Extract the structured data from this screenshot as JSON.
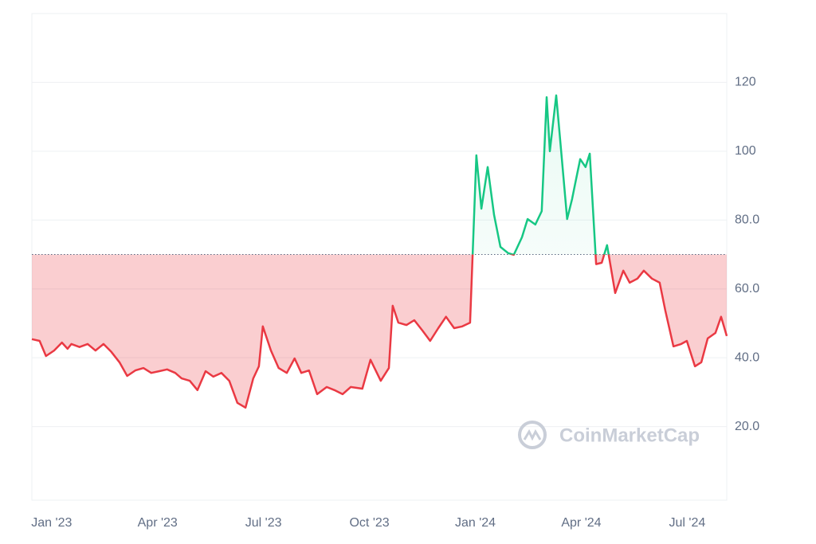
{
  "chart_data": {
    "type": "baseline-area",
    "watermark": "CoinMarketCap",
    "baseline": 70,
    "up_color": "#16c784",
    "down_color": "#ea3943",
    "grid": true,
    "xlim": [
      -0.56,
      19.12
    ],
    "ylim": [
      0,
      140
    ],
    "xticks": [
      {
        "value": 0,
        "label": "Jan '23"
      },
      {
        "value": 3,
        "label": "Apr '23"
      },
      {
        "value": 6,
        "label": "Jul '23"
      },
      {
        "value": 9,
        "label": "Oct '23"
      },
      {
        "value": 12,
        "label": "Jan '24"
      },
      {
        "value": 15,
        "label": "Apr '24"
      },
      {
        "value": 18,
        "label": "Jul '24"
      }
    ],
    "yticks": [
      {
        "value": 20,
        "label": "20.0"
      },
      {
        "value": 40,
        "label": "40.0"
      },
      {
        "value": 60,
        "label": "60.0"
      },
      {
        "value": 80,
        "label": "80.0"
      },
      100,
      120
    ],
    "x": [
      -0.56,
      -0.34,
      -0.16,
      0.07,
      0.29,
      0.45,
      0.56,
      0.79,
      1.02,
      1.24,
      1.47,
      1.69,
      1.92,
      2.14,
      2.37,
      2.6,
      2.82,
      3.05,
      3.27,
      3.5,
      3.68,
      3.91,
      4.13,
      4.36,
      4.58,
      4.81,
      5.03,
      5.26,
      5.49,
      5.71,
      5.87,
      5.98,
      6.21,
      6.43,
      6.66,
      6.88,
      7.07,
      7.29,
      7.52,
      7.79,
      8.01,
      8.24,
      8.47,
      8.8,
      9.03,
      9.32,
      9.55,
      9.66,
      9.82,
      10.05,
      10.27,
      10.5,
      10.72,
      10.95,
      11.17,
      11.4,
      11.63,
      11.85,
      12.03,
      12.17,
      12.35,
      12.53,
      12.71,
      12.93,
      13.09,
      13.32,
      13.48,
      13.7,
      13.88,
      14.02,
      14.11,
      14.29,
      14.45,
      14.6,
      14.74,
      14.83,
      14.97,
      15.12,
      15.24,
      15.42,
      15.58,
      15.73,
      15.96,
      16.19,
      16.37,
      16.59,
      16.77,
      17.0,
      17.22,
      17.38,
      17.61,
      17.83,
      17.99,
      18.22,
      18.4,
      18.58,
      18.8,
      18.96,
      19.12
    ],
    "values": [
      45.4,
      44.9,
      40.5,
      42.1,
      44.4,
      42.6,
      44.0,
      43.1,
      44.0,
      42.1,
      44.0,
      41.7,
      38.7,
      34.7,
      36.3,
      37.0,
      35.6,
      36.1,
      36.6,
      35.6,
      34.0,
      33.3,
      30.6,
      36.1,
      34.5,
      35.6,
      33.3,
      26.9,
      25.5,
      34.0,
      37.5,
      49.1,
      42.1,
      37.0,
      35.6,
      39.8,
      35.6,
      36.3,
      29.4,
      31.5,
      30.6,
      29.4,
      31.5,
      31.0,
      39.4,
      33.3,
      37.0,
      55.1,
      50.2,
      49.5,
      50.9,
      47.9,
      44.9,
      48.6,
      51.9,
      48.6,
      49.1,
      50.2,
      98.8,
      83.3,
      95.4,
      81.5,
      72.2,
      70.4,
      69.9,
      75.0,
      80.3,
      78.7,
      82.6,
      115.7,
      100.0,
      116.2,
      97.7,
      80.3,
      86.1,
      90.7,
      97.7,
      95.4,
      99.3,
      67.2,
      67.6,
      72.7,
      58.8,
      65.3,
      61.8,
      63.0,
      65.3,
      63.0,
      61.8,
      53.7,
      43.3,
      44.0,
      44.9,
      37.5,
      38.7,
      45.6,
      47.2,
      51.9,
      46.3
    ]
  }
}
